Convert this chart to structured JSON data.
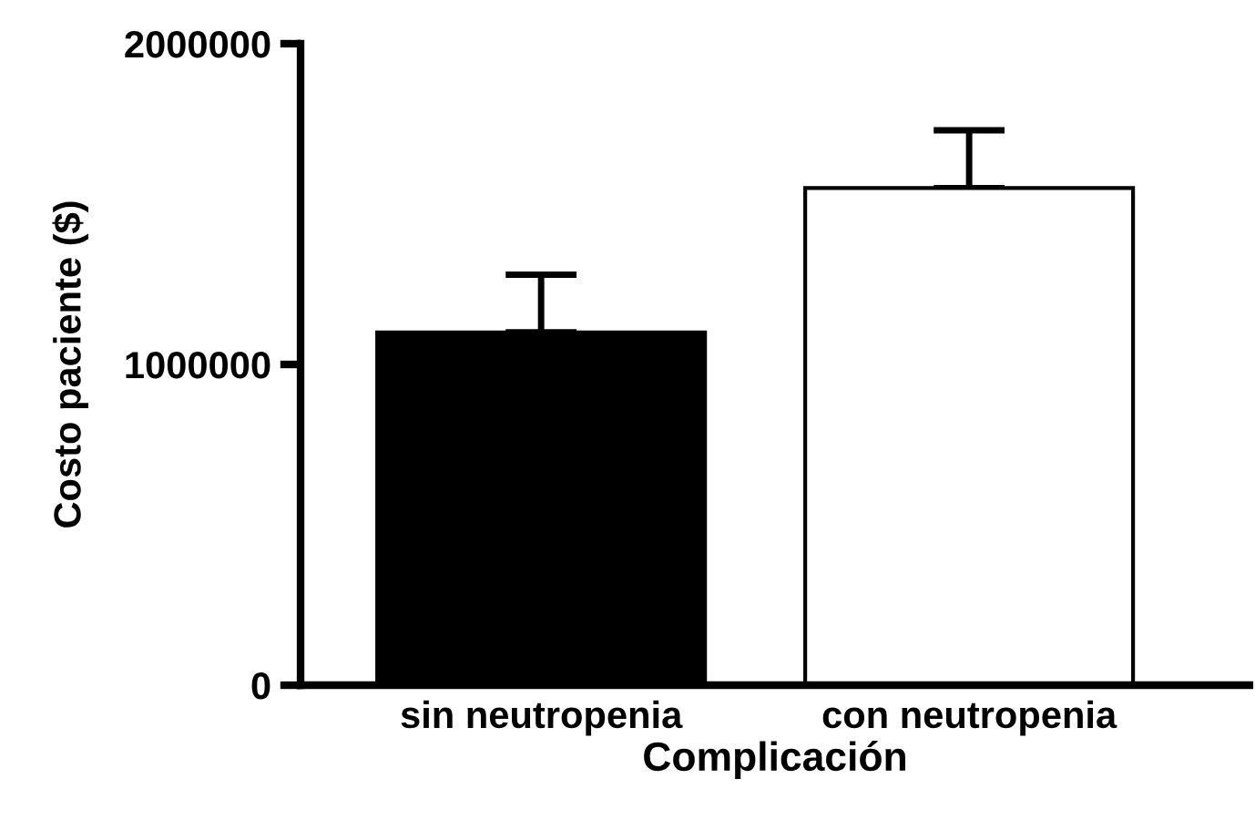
{
  "chart_data": {
    "type": "bar",
    "xlabel": "Complicación",
    "ylabel": "Costo paciente ($)",
    "categories": [
      "sin neutropenia",
      "con neutropenia"
    ],
    "values": [
      1100000,
      1550000
    ],
    "colors": [
      "#000000",
      "#ffffff"
    ],
    "errors": [
      [
        1100000,
        1280000
      ],
      [
        1550000,
        1730000
      ]
    ],
    "ylim": [
      0,
      2000000
    ],
    "yticks": [
      0,
      1000000,
      2000000
    ],
    "grid": false
  }
}
